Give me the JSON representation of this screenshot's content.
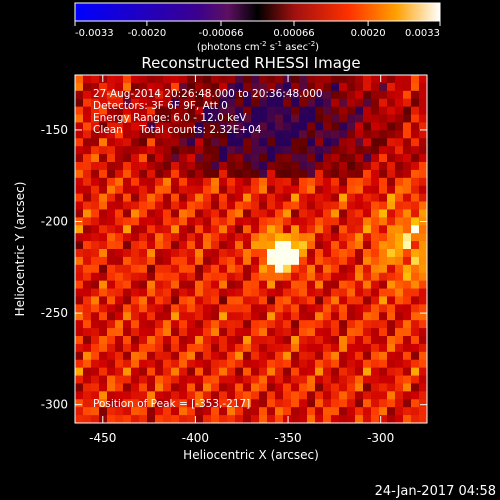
{
  "colorbar": {
    "ticks": [
      "-0.0033",
      "-0.0020",
      "-0.00066",
      "0.00066",
      "0.0020",
      "0.0033"
    ],
    "unit_label": "(photons cm",
    "unit_sup1": "-2",
    "unit_mid": " s",
    "unit_sup2": "-1",
    "unit_mid2": " asec",
    "unit_sup3": "-2",
    "unit_close": ")"
  },
  "info": {
    "line1": "27-Aug-2014 20:26:48.000 to 20:36:48.000",
    "line2": "Detectors: 3F 6F 9F, Att 0",
    "line3": "Energy Range: 6.0 - 12.0 keV",
    "line4": "Clean     Total counts: 2.32E+04",
    "peak": "Position of Peak = [-353,-217]"
  },
  "footer": {
    "timestamp": "24-Jan-2017 04:58"
  },
  "chart_data": {
    "type": "heatmap",
    "title": "Reconstructed RHESSI Image",
    "xlabel": "Heliocentric X (arcsec)",
    "ylabel": "Heliocentric Y (arcsec)",
    "xlim": [
      -465,
      -275
    ],
    "ylim": [
      -310,
      -120
    ],
    "xticks": [
      -450,
      -400,
      -350,
      -300
    ],
    "yticks": [
      -150,
      -200,
      -250,
      -300
    ],
    "colorscale_range": [
      -0.0033,
      0.0033
    ],
    "peak": {
      "x": -353,
      "y": -217
    }
  }
}
